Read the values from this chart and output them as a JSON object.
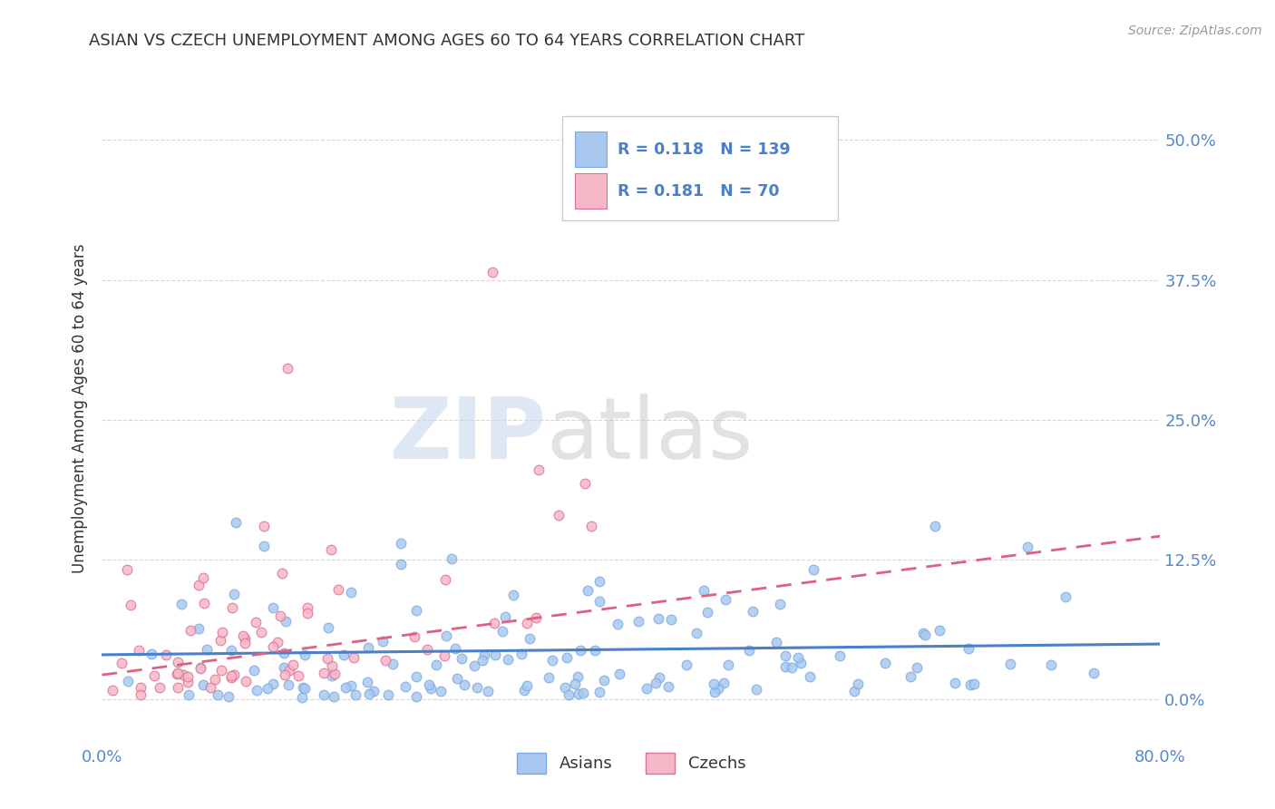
{
  "title": "ASIAN VS CZECH UNEMPLOYMENT AMONG AGES 60 TO 64 YEARS CORRELATION CHART",
  "source": "Source: ZipAtlas.com",
  "ylabel": "Unemployment Among Ages 60 to 64 years",
  "asian_R": 0.118,
  "asian_N": 139,
  "czech_R": 0.181,
  "czech_N": 70,
  "asian_color": "#a8c8f0",
  "asian_edge": "#7aaade",
  "czech_color": "#f5b8c8",
  "czech_edge": "#e07090",
  "trend_asian_color": "#4a7fcb",
  "trend_czech_color": "#e06080",
  "xlim": [
    0.0,
    0.8
  ],
  "ylim": [
    -0.04,
    0.56
  ],
  "yticks": [
    0.0,
    0.125,
    0.25,
    0.375,
    0.5
  ],
  "ytick_labels": [
    "0.0%",
    "12.5%",
    "25.0%",
    "37.5%",
    "50.0%"
  ],
  "xtick_labels": [
    "0.0%",
    "80.0%"
  ],
  "watermark_zip_color": "#c8d8ee",
  "watermark_atlas_color": "#c0c0c0",
  "background_color": "#ffffff",
  "grid_color": "#cccccc",
  "title_color": "#333333",
  "axis_label_color": "#5588cc",
  "legend_R_color": "#4a7fcb",
  "source_color": "#999999"
}
